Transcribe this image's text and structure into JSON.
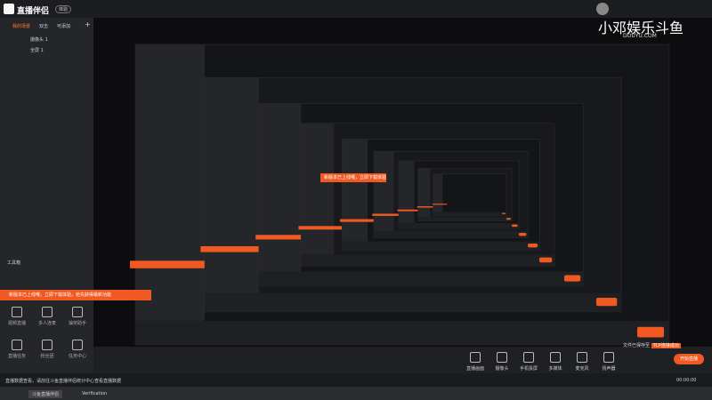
{
  "header": {
    "logo": "直播伴侣",
    "badge": "体验",
    "tabs": [
      "我的场景",
      "双击",
      "可添加"
    ]
  },
  "sources": [
    "摄像头 1",
    "全屏 1"
  ],
  "toolbox": {
    "title": "工具箱",
    "notice": "新版本已上线哦，立即下载体验，抢先获得最新功能",
    "tools": [
      "视频直播",
      "多人连麦",
      "抽奖助手",
      "直播任务",
      "粉丝团",
      "任务中心"
    ]
  },
  "preview": {
    "watermark": "小邓娱乐斗鱼",
    "watermark_sub": "DOUYU.COM",
    "inner_notice": "新版本已上线哦，立即下载体验"
  },
  "toolbar": {
    "items": [
      "直播画面",
      "摄像头",
      "手机投屏",
      "多媒体",
      "麦克风",
      "扬声器"
    ],
    "tooltip": "文件已保存至",
    "tooltip_tag": "TCP连接成功",
    "start_button": "开始直播"
  },
  "status": {
    "notice": "直播数据查看，请前往斗鱼直播伴侣统计中心查看直播数据",
    "time": "00:00:00"
  },
  "taskbar": {
    "apps": [
      "斗鱼直播伴侣",
      "Verification"
    ]
  }
}
